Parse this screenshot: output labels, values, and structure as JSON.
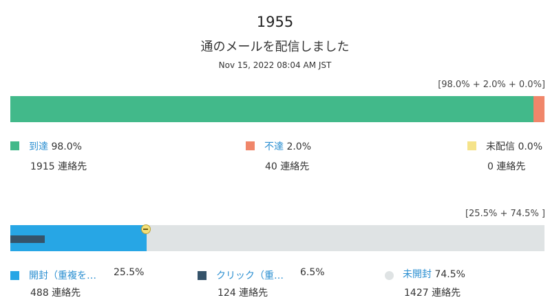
{
  "header": {
    "count": "1955",
    "subtitle": "通のメールを配信しました",
    "datetime": "Nov 15, 2022 08:04 AM JST"
  },
  "delivery": {
    "summary": "[98.0% + 2.0% + 0.0%]",
    "colors": {
      "delivered": "#42b98a",
      "bounced": "#f0866a",
      "undelivered": "#f5e38a"
    },
    "fractions": {
      "delivered": 0.98,
      "bounced": 0.02,
      "undelivered": 0.0
    },
    "legend": {
      "delivered": {
        "label": "到達",
        "pct": "98.0%",
        "count": "1915 連絡先"
      },
      "bounced": {
        "label": "不達",
        "pct": "2.0%",
        "count": "40 連絡先"
      },
      "undelivered": {
        "label": "未配信",
        "pct": "0.0%",
        "count": "0 連絡先"
      }
    }
  },
  "engagement": {
    "summary": "[25.5% + 74.5% ]",
    "colors": {
      "opened": "#27a6e5",
      "clicked": "#35536a",
      "unopened": "#dfe3e4"
    },
    "fractions": {
      "opened": 0.255,
      "clicked": 0.065,
      "unopened": 0.745
    },
    "legend": {
      "opened": {
        "label": "開封（重複を…",
        "pct": "25.5%",
        "count": "488 連絡先"
      },
      "clicked": {
        "label": "クリック（重…",
        "pct": "6.5%",
        "count": "124 連絡先"
      },
      "unopened": {
        "label": "未開封",
        "pct": "74.5%",
        "count": "1427 連絡先"
      }
    }
  }
}
